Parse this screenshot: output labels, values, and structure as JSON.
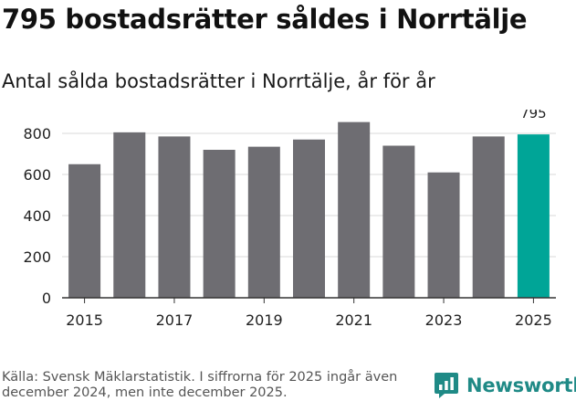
{
  "header": {
    "title": "795 bostadsrätter såldes i Norrtälje",
    "subtitle": "Antal sålda bostadsrätter i Norrtälje, år för år"
  },
  "footer": {
    "source": "Källa: Svensk Mäklarstatistik. I siffrorna för 2025 ingår även december 2024, men inte december 2025.",
    "brand": "Newsworthy"
  },
  "colors": {
    "bar": "#6e6d72",
    "highlight": "#00a597",
    "grid": "#d9d9d9",
    "axis": "#333333",
    "brand": "#1f8a86"
  },
  "chart_data": {
    "type": "bar",
    "title": "Antal sålda bostadsrätter i Norrtälje, år för år",
    "xlabel": "",
    "ylabel": "",
    "categories": [
      "2015",
      "2016",
      "2017",
      "2018",
      "2019",
      "2020",
      "2021",
      "2022",
      "2023",
      "2024",
      "2025"
    ],
    "values": [
      650,
      805,
      785,
      720,
      735,
      770,
      855,
      740,
      610,
      785,
      795
    ],
    "highlight_index": 10,
    "data_labels": [
      {
        "index": 10,
        "text": "795"
      }
    ],
    "x_tick_labels": [
      "2015",
      "2017",
      "2019",
      "2021",
      "2023",
      "2025"
    ],
    "y_ticks": [
      0,
      200,
      400,
      600,
      800
    ],
    "ylim": [
      0,
      900
    ],
    "grid": true,
    "legend": "none"
  }
}
